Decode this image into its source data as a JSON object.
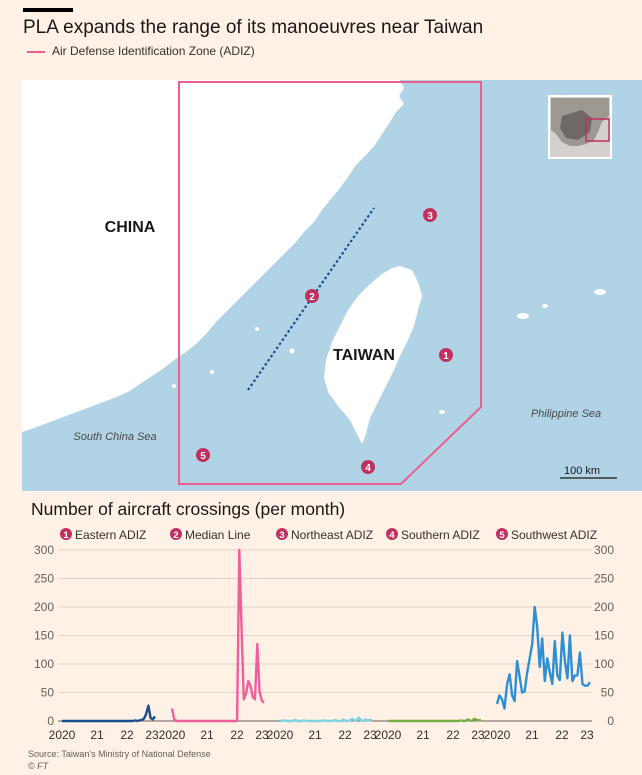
{
  "header": {
    "title": "PLA expands the range of its manoeuvres near Taiwan",
    "legend_label": "Air Defense Identification Zone (ADIZ)",
    "legend_color": "#ec5f8f"
  },
  "map": {
    "labels": {
      "china": "CHINA",
      "taiwan": "TAIWAN",
      "south_china_sea": "South China Sea",
      "philippine_sea": "Philippine Sea",
      "scale": "100 km"
    },
    "markers": [
      "1",
      "2",
      "3",
      "4",
      "5"
    ],
    "colors": {
      "sea": "#b0d3e6",
      "land": "#ffffff",
      "adiz": "#ec5f8f",
      "median_line": "#1f4a92",
      "marker": "#c0315f"
    }
  },
  "footer": {
    "source": "Source: Taiwan's Ministry of National Defense",
    "credit": "© FT"
  },
  "chart_data": {
    "type": "line",
    "title": "Number of aircraft crossings (per month)",
    "ylim": [
      0,
      300
    ],
    "yticks": [
      "0",
      "50",
      "100",
      "150",
      "200",
      "250",
      "300"
    ],
    "xticks": [
      "2020",
      "21",
      "22",
      "23"
    ],
    "panels": [
      {
        "num": "1",
        "name": "Eastern ADIZ",
        "color": "#1b4e8f",
        "values": [
          0,
          0,
          0,
          0,
          0,
          0,
          0,
          0,
          0,
          0,
          0,
          0,
          0,
          0,
          0,
          0,
          0,
          0,
          0,
          0,
          0,
          0,
          0,
          0,
          0,
          0,
          0,
          0,
          0,
          0,
          0,
          0,
          0,
          1,
          0,
          1,
          2,
          4,
          12,
          27,
          5,
          3,
          8
        ]
      },
      {
        "num": "2",
        "name": "Median Line",
        "color": "#ef5f99",
        "values": [
          22,
          3,
          0,
          0,
          0,
          0,
          0,
          0,
          0,
          0,
          0,
          0,
          0,
          0,
          0,
          0,
          0,
          0,
          0,
          0,
          0,
          0,
          0,
          0,
          0,
          0,
          0,
          0,
          0,
          0,
          300,
          160,
          38,
          48,
          70,
          62,
          42,
          38,
          135,
          52,
          36,
          32
        ]
      },
      {
        "num": "3",
        "name": "Northeast ADIZ",
        "color": "#7fd3e3",
        "values": [
          0,
          0,
          1,
          0,
          0,
          0,
          0,
          2,
          0,
          0,
          0,
          1,
          0,
          0,
          0,
          0,
          0,
          0,
          0,
          0,
          1,
          0,
          0,
          0,
          0,
          2,
          0,
          0,
          0,
          3,
          0,
          0,
          1,
          4,
          0,
          2,
          6,
          1,
          0,
          3,
          1,
          2,
          1
        ]
      },
      {
        "num": "4",
        "name": "Southern ADIZ",
        "color": "#78ad4a",
        "values": [
          0,
          0,
          0,
          0,
          0,
          0,
          0,
          0,
          0,
          0,
          0,
          0,
          0,
          0,
          0,
          0,
          0,
          0,
          0,
          0,
          0,
          0,
          0,
          0,
          0,
          0,
          0,
          0,
          0,
          0,
          0,
          0,
          0,
          1,
          0,
          0,
          3,
          1,
          0,
          4,
          2,
          1,
          2
        ]
      },
      {
        "num": "5",
        "name": "Southwest ADIZ",
        "color": "#2e8fd3",
        "values": [
          30,
          45,
          38,
          22,
          65,
          82,
          45,
          35,
          105,
          78,
          50,
          52,
          85,
          110,
          135,
          200,
          165,
          95,
          145,
          70,
          110,
          85,
          65,
          140,
          80,
          72,
          155,
          105,
          75,
          150,
          70,
          80,
          80,
          120,
          65,
          62,
          62,
          68
        ]
      }
    ]
  }
}
